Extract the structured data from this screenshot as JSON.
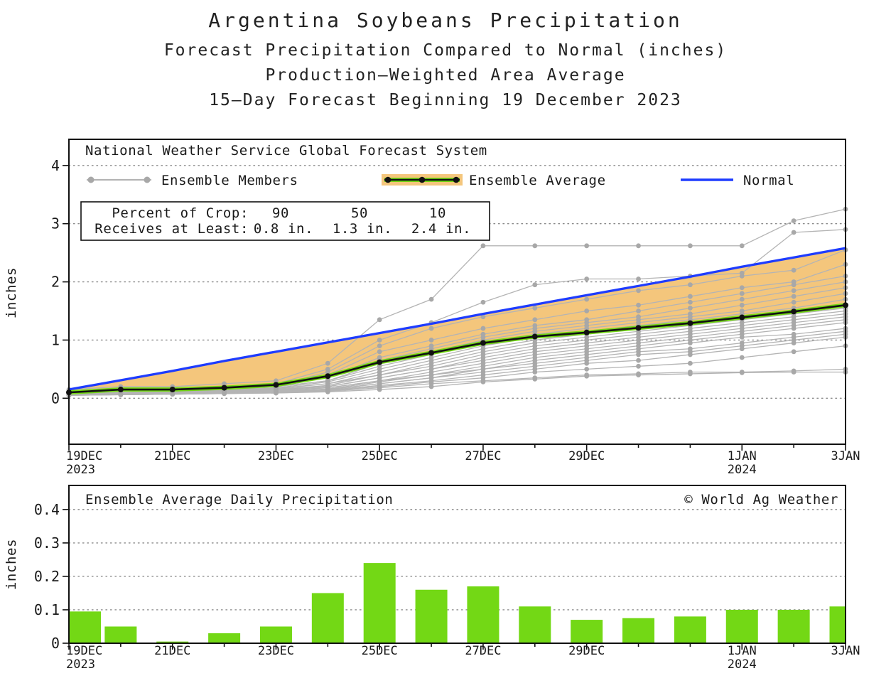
{
  "title": {
    "line1": "Argentina Soybeans Precipitation",
    "line2": "Forecast Precipitation Compared to Normal (inches)",
    "line3": "Production–Weighted Area Average",
    "line4": "15–Day Forecast Beginning 19 December 2023"
  },
  "colors": {
    "band": "#f4c67c",
    "green": "#73d815",
    "normal_blue": "#1e3cff",
    "member": "#b4b4b4",
    "member_dot": "#a8a8a8",
    "frame": "#111111",
    "grid": "#8a8a8a",
    "text": "#1a1a1a"
  },
  "chart_data": [
    {
      "type": "line",
      "header": "National Weather Service Global Forecast System",
      "ylabel": "inches",
      "ylim": [
        -0.79,
        4.45
      ],
      "grid": "dotted-horizontal",
      "legend_position": "top-inside",
      "yticks": [
        {
          "v": 0,
          "label": "0"
        },
        {
          "v": 1,
          "label": "1"
        },
        {
          "v": 2,
          "label": "2"
        },
        {
          "v": 3,
          "label": "3"
        },
        {
          "v": 4,
          "label": "4"
        }
      ],
      "categories": [
        "19DEC",
        "20DEC",
        "21DEC",
        "22DEC",
        "23DEC",
        "24DEC",
        "25DEC",
        "26DEC",
        "27DEC",
        "28DEC",
        "29DEC",
        "30DEC",
        "31DEC",
        "1JAN",
        "2JAN",
        "3JAN"
      ],
      "x_ticks": [
        {
          "i": 0,
          "label": "19DEC",
          "sub": "2023"
        },
        {
          "i": 2,
          "label": "21DEC"
        },
        {
          "i": 4,
          "label": "23DEC"
        },
        {
          "i": 6,
          "label": "25DEC"
        },
        {
          "i": 8,
          "label": "27DEC"
        },
        {
          "i": 10,
          "label": "29DEC"
        },
        {
          "i": 13,
          "label": "1JAN",
          "sub": "2024"
        },
        {
          "i": 15,
          "label": "3JAN"
        }
      ],
      "legend": {
        "members": "Ensemble Members",
        "average": "Ensemble Average",
        "normal": "Normal"
      },
      "crop_table": {
        "row1_label": "Percent of Crop:",
        "row2_label": "Receives at Least:",
        "percents": [
          "90",
          "50",
          "10"
        ],
        "amounts": [
          "0.8 in.",
          "1.3 in.",
          "2.4 in."
        ]
      },
      "series": {
        "normal": {
          "name": "Normal",
          "values": [
            0.15,
            0.31,
            0.47,
            0.64,
            0.8,
            0.96,
            1.12,
            1.28,
            1.45,
            1.61,
            1.77,
            1.93,
            2.09,
            2.26,
            2.42,
            2.58
          ]
        },
        "ensemble_average": {
          "name": "Ensemble Average",
          "values": [
            0.1,
            0.15,
            0.15,
            0.18,
            0.23,
            0.38,
            0.62,
            0.78,
            0.95,
            1.06,
            1.13,
            1.21,
            1.29,
            1.39,
            1.49,
            1.6
          ]
        },
        "ensemble_members": {
          "name": "Ensemble Members",
          "count": 23,
          "series": [
            [
              0.15,
              0.2,
              0.2,
              0.25,
              0.3,
              0.6,
              1.35,
              1.7,
              2.62,
              2.62,
              2.62,
              2.62,
              2.62,
              2.62,
              3.05,
              3.25
            ],
            [
              0.1,
              0.15,
              0.15,
              0.2,
              0.25,
              0.5,
              1.0,
              1.3,
              1.65,
              1.95,
              2.05,
              2.05,
              2.1,
              2.15,
              2.85,
              2.9
            ],
            [
              0.1,
              0.12,
              0.15,
              0.18,
              0.22,
              0.45,
              0.9,
              1.2,
              1.4,
              1.55,
              1.7,
              1.85,
              1.95,
              2.1,
              2.2,
              2.55
            ],
            [
              0.12,
              0.15,
              0.18,
              0.2,
              0.25,
              0.4,
              0.8,
              1.0,
              1.2,
              1.35,
              1.5,
              1.6,
              1.75,
              1.9,
              2.0,
              2.3
            ],
            [
              0.1,
              0.14,
              0.16,
              0.2,
              0.24,
              0.35,
              0.7,
              0.9,
              1.1,
              1.25,
              1.35,
              1.5,
              1.65,
              1.8,
              1.95,
              2.1
            ],
            [
              0.1,
              0.13,
              0.15,
              0.18,
              0.22,
              0.35,
              0.65,
              0.85,
              1.05,
              1.2,
              1.3,
              1.4,
              1.55,
              1.7,
              1.85,
              2.0
            ],
            [
              0.1,
              0.12,
              0.14,
              0.17,
              0.2,
              0.3,
              0.6,
              0.8,
              1.0,
              1.15,
              1.25,
              1.35,
              1.45,
              1.6,
              1.75,
              1.9
            ],
            [
              0.1,
              0.12,
              0.14,
              0.16,
              0.2,
              0.3,
              0.55,
              0.75,
              0.95,
              1.1,
              1.2,
              1.3,
              1.4,
              1.5,
              1.65,
              1.8
            ],
            [
              0.1,
              0.12,
              0.13,
              0.15,
              0.18,
              0.28,
              0.5,
              0.7,
              0.9,
              1.05,
              1.15,
              1.25,
              1.35,
              1.45,
              1.55,
              1.7
            ],
            [
              0.08,
              0.1,
              0.12,
              0.14,
              0.17,
              0.25,
              0.45,
              0.65,
              0.85,
              1.0,
              1.1,
              1.2,
              1.3,
              1.4,
              1.5,
              1.6
            ],
            [
              0.08,
              0.1,
              0.12,
              0.14,
              0.16,
              0.25,
              0.4,
              0.6,
              0.8,
              0.95,
              1.05,
              1.15,
              1.25,
              1.35,
              1.45,
              1.55
            ],
            [
              0.08,
              0.1,
              0.11,
              0.13,
              0.15,
              0.22,
              0.4,
              0.55,
              0.75,
              0.9,
              1.0,
              1.1,
              1.2,
              1.3,
              1.4,
              1.5
            ],
            [
              0.08,
              0.1,
              0.11,
              0.12,
              0.15,
              0.2,
              0.35,
              0.5,
              0.7,
              0.85,
              0.95,
              1.05,
              1.15,
              1.25,
              1.35,
              1.45
            ],
            [
              0.07,
              0.09,
              0.1,
              0.12,
              0.14,
              0.2,
              0.35,
              0.5,
              0.65,
              0.8,
              0.9,
              1.0,
              1.1,
              1.2,
              1.3,
              1.4
            ],
            [
              0.07,
              0.09,
              0.1,
              0.11,
              0.13,
              0.18,
              0.3,
              0.45,
              0.6,
              0.75,
              0.85,
              0.95,
              1.05,
              1.15,
              1.25,
              1.35
            ],
            [
              0.07,
              0.08,
              0.09,
              0.11,
              0.13,
              0.18,
              0.3,
              0.4,
              0.55,
              0.7,
              0.8,
              0.9,
              1.0,
              1.1,
              1.2,
              1.3
            ],
            [
              0.06,
              0.08,
              0.09,
              0.1,
              0.12,
              0.16,
              0.28,
              0.4,
              0.5,
              0.65,
              0.75,
              0.85,
              0.95,
              1.05,
              1.1,
              1.2
            ],
            [
              0.06,
              0.08,
              0.09,
              0.1,
              0.12,
              0.15,
              0.25,
              0.35,
              0.5,
              0.6,
              0.7,
              0.8,
              0.85,
              0.95,
              1.05,
              1.15
            ],
            [
              0.06,
              0.07,
              0.08,
              0.1,
              0.11,
              0.15,
              0.25,
              0.35,
              0.45,
              0.55,
              0.65,
              0.75,
              0.8,
              0.9,
              1.0,
              1.1
            ],
            [
              0.05,
              0.07,
              0.08,
              0.09,
              0.11,
              0.14,
              0.22,
              0.3,
              0.4,
              0.5,
              0.6,
              0.65,
              0.75,
              0.85,
              0.95,
              1.05
            ],
            [
              0.05,
              0.06,
              0.07,
              0.08,
              0.1,
              0.13,
              0.2,
              0.28,
              0.35,
              0.45,
              0.5,
              0.55,
              0.6,
              0.7,
              0.8,
              0.9
            ],
            [
              0.05,
              0.06,
              0.07,
              0.08,
              0.09,
              0.12,
              0.18,
              0.25,
              0.3,
              0.35,
              0.4,
              0.42,
              0.45,
              0.45,
              0.47,
              0.5
            ],
            [
              0.05,
              0.06,
              0.07,
              0.08,
              0.09,
              0.11,
              0.15,
              0.2,
              0.28,
              0.33,
              0.38,
              0.4,
              0.42,
              0.44,
              0.45,
              0.45
            ]
          ]
        }
      }
    },
    {
      "type": "bar",
      "title": "Ensemble Average Daily Precipitation",
      "watermark": "© World Ag Weather",
      "ylabel": "inches",
      "ylim": [
        0,
        0.472
      ],
      "grid": "dotted-horizontal",
      "yticks": [
        {
          "v": 0,
          "label": "0"
        },
        {
          "v": 0.1,
          "label": "0.1"
        },
        {
          "v": 0.2,
          "label": "0.2"
        },
        {
          "v": 0.3,
          "label": "0.3"
        },
        {
          "v": 0.4,
          "label": "0.4"
        }
      ],
      "categories": [
        "19DEC",
        "20DEC",
        "21DEC",
        "22DEC",
        "23DEC",
        "24DEC",
        "25DEC",
        "26DEC",
        "27DEC",
        "28DEC",
        "29DEC",
        "30DEC",
        "31DEC",
        "1JAN",
        "2JAN",
        "3JAN"
      ],
      "x_ticks": [
        {
          "i": 0,
          "label": "19DEC",
          "sub": "2023"
        },
        {
          "i": 2,
          "label": "21DEC"
        },
        {
          "i": 4,
          "label": "23DEC"
        },
        {
          "i": 6,
          "label": "25DEC"
        },
        {
          "i": 8,
          "label": "27DEC"
        },
        {
          "i": 10,
          "label": "29DEC"
        },
        {
          "i": 13,
          "label": "1JAN",
          "sub": "2024"
        },
        {
          "i": 15,
          "label": "3JAN"
        }
      ],
      "values": [
        0.095,
        0.05,
        0.005,
        0.03,
        0.05,
        0.15,
        0.24,
        0.16,
        0.17,
        0.11,
        0.07,
        0.075,
        0.08,
        0.1,
        0.1,
        0.11
      ]
    }
  ]
}
